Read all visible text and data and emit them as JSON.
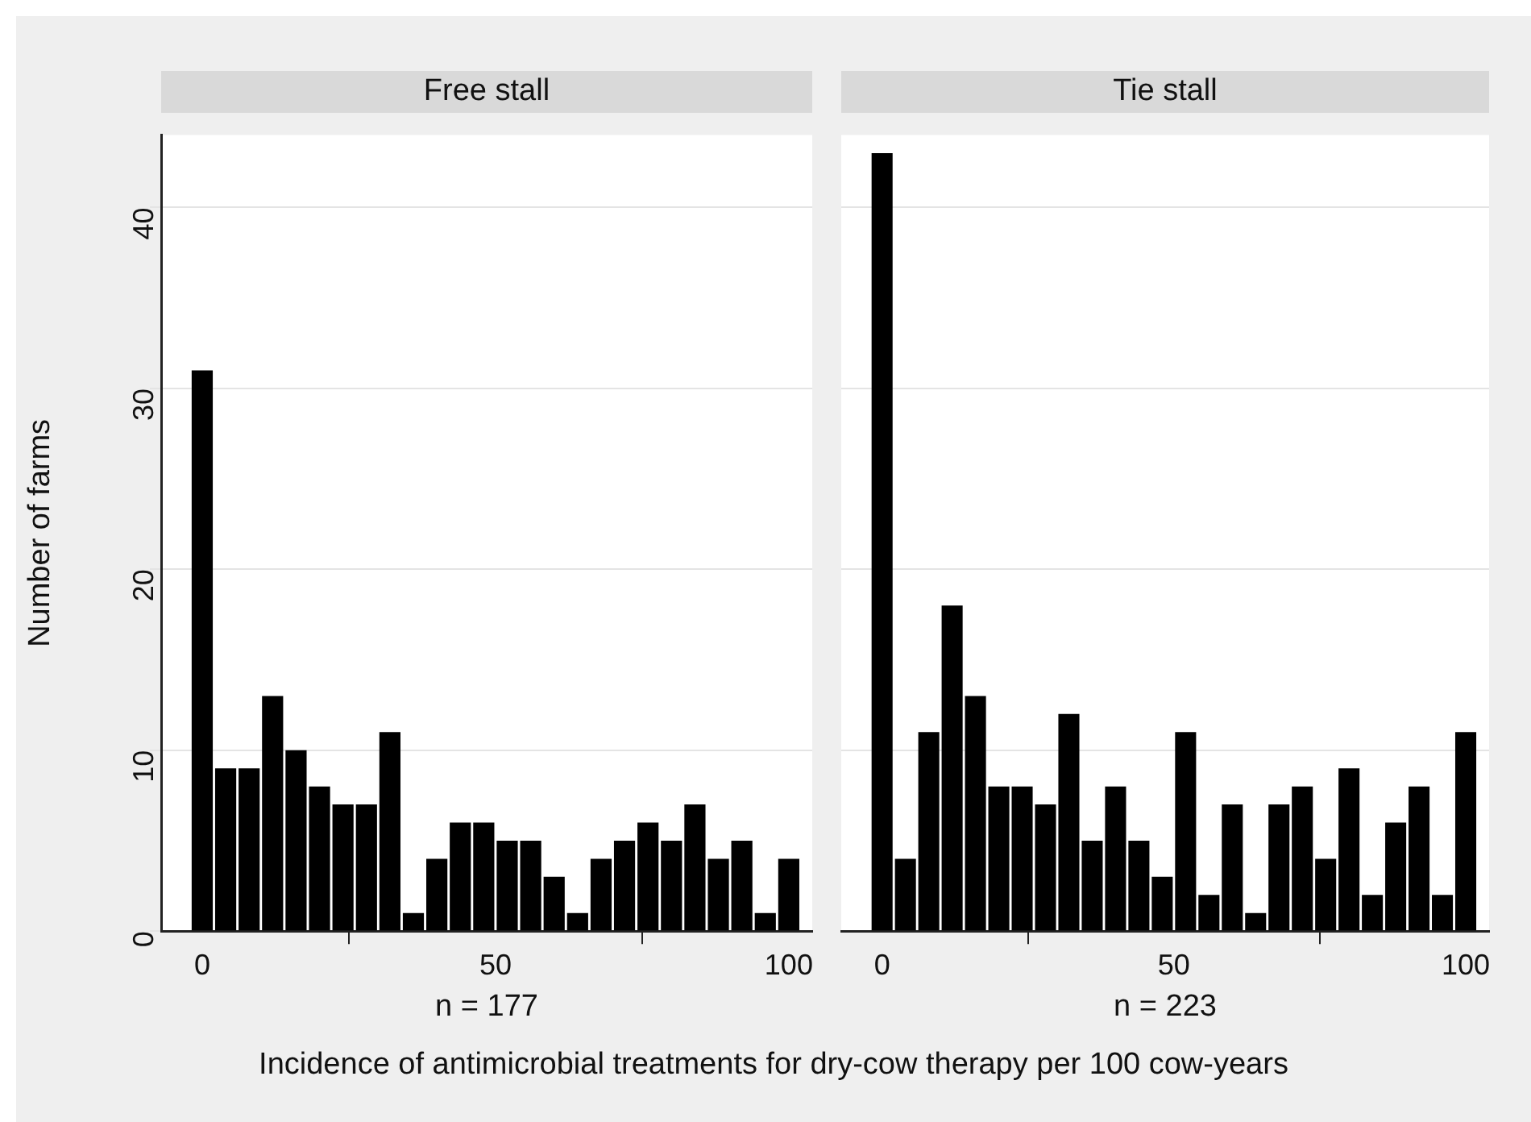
{
  "chart_data": [
    {
      "type": "histogram",
      "title": "Free stall",
      "xlabel": "n = 177",
      "ylabel": "Number of farms",
      "bins": [
        -2,
        2,
        6,
        10,
        14,
        18,
        22,
        26,
        30,
        34,
        38,
        42,
        46,
        50,
        54,
        58,
        62,
        66,
        70,
        74,
        78,
        82,
        86,
        90,
        94,
        98,
        102
      ],
      "values": [
        31,
        9,
        9,
        13,
        10,
        8,
        7,
        7,
        11,
        1,
        4,
        6,
        6,
        5,
        5,
        3,
        1,
        4,
        5,
        6,
        5,
        7,
        4,
        5,
        1,
        4
      ],
      "color": "#000000",
      "xlim": [
        -7,
        104
      ],
      "xticks": [
        0,
        50,
        100
      ],
      "ylim": [
        0,
        44
      ],
      "yticks": [
        0,
        10,
        20,
        30,
        40
      ],
      "grid": "y",
      "annotations": [
        "Incidence of antimicrobial treatments for dry-cow therapy per 100 cow-years"
      ]
    },
    {
      "type": "histogram",
      "title": "Tie stall",
      "xlabel": "n = 223",
      "bins": [
        -2,
        2,
        6,
        10,
        14,
        18,
        22,
        26,
        30,
        34,
        38,
        42,
        46,
        50,
        54,
        58,
        62,
        66,
        70,
        74,
        78,
        82,
        86,
        90,
        94,
        98,
        102
      ],
      "values": [
        43,
        4,
        11,
        18,
        13,
        8,
        8,
        7,
        12,
        5,
        8,
        5,
        3,
        11,
        2,
        7,
        1,
        7,
        8,
        4,
        9,
        2,
        6,
        8,
        2,
        11
      ],
      "color": "#000000",
      "xlim": [
        -7,
        104
      ],
      "xticks": [
        0,
        50,
        100
      ],
      "ylim": [
        0,
        44
      ],
      "yticks": [
        0,
        10,
        20,
        30,
        40
      ],
      "grid": "y",
      "tick_labels": "x"
    }
  ]
}
